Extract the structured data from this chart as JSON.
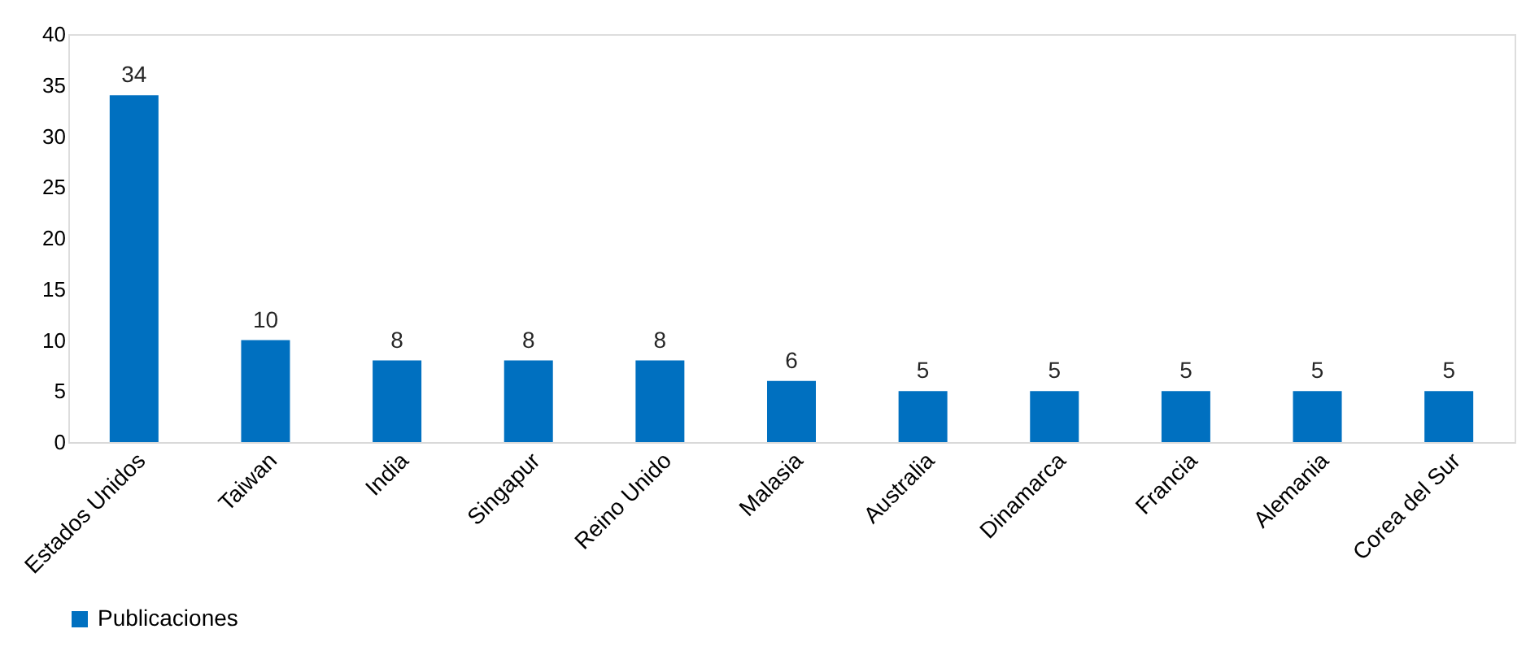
{
  "chart_data": {
    "type": "bar",
    "categories": [
      "Estados Unidos",
      "Taiwan",
      "India",
      "Singapur",
      "Reino Unido",
      "Malasia",
      "Australia",
      "Dinamarca",
      "Francia",
      "Alemania",
      "Corea del Sur"
    ],
    "series": [
      {
        "name": "Publicaciones",
        "color": "#0070c0",
        "values": [
          34,
          10,
          8,
          8,
          8,
          6,
          5,
          5,
          5,
          5,
          5
        ]
      }
    ],
    "ylim": [
      0,
      40
    ],
    "yticks": [
      0,
      5,
      10,
      15,
      20,
      25,
      30,
      35,
      40
    ],
    "data_labels": true,
    "grid": false,
    "legend": "bottom"
  }
}
